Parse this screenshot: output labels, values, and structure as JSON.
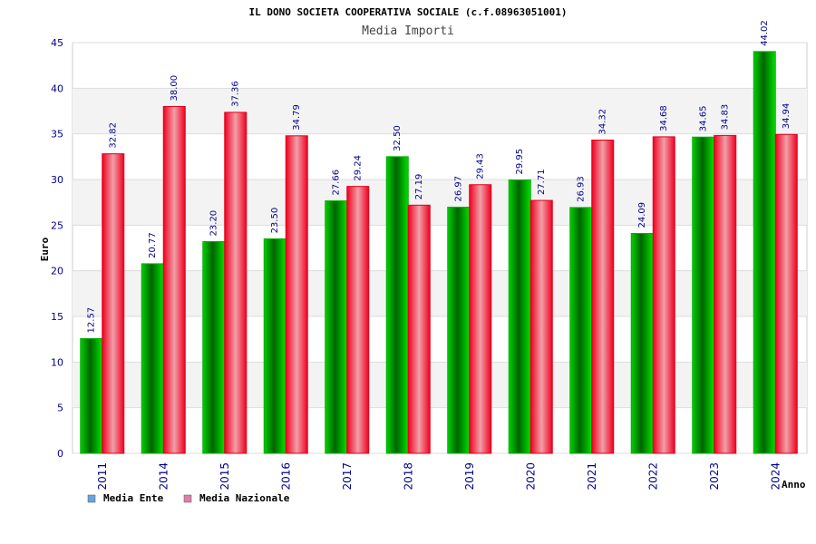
{
  "chart_data": {
    "type": "bar",
    "title": "IL DONO SOCIETA COOPERATIVA SOCIALE (c.f.08963051001)",
    "subtitle": "Media Importi",
    "xlabel": "Anno",
    "ylabel": "Euro",
    "ylim": [
      0,
      45
    ],
    "yticks": [
      0,
      5,
      10,
      15,
      20,
      25,
      30,
      35,
      40,
      45
    ],
    "grid": true,
    "legend_position": "bottom-left",
    "categories": [
      "2011",
      "2014",
      "2015",
      "2016",
      "2017",
      "2018",
      "2019",
      "2020",
      "2021",
      "2022",
      "2023",
      "2024"
    ],
    "series": [
      {
        "name": "Media Ente",
        "color": "#00a000",
        "legend_color": "#66a3e0",
        "values": [
          12.57,
          20.77,
          23.2,
          23.5,
          27.66,
          32.5,
          26.97,
          29.95,
          26.93,
          24.09,
          34.65,
          44.02
        ],
        "labels": [
          "12.57",
          "20.77",
          "23.20",
          "23.50",
          "27.66",
          "32.50",
          "26.97",
          "29.95",
          "26.93",
          "24.09",
          "34.65",
          "44.02"
        ]
      },
      {
        "name": "Media Nazionale",
        "color": "#e8001c",
        "legend_color": "#e07fa6",
        "values": [
          32.82,
          38.0,
          37.36,
          34.79,
          29.24,
          27.19,
          29.43,
          27.71,
          34.32,
          34.68,
          34.83,
          34.94
        ],
        "labels": [
          "32.82",
          "38.00",
          "37.36",
          "34.79",
          "29.24",
          "27.19",
          "29.43",
          "27.71",
          "34.32",
          "34.68",
          "34.83",
          "34.94"
        ]
      }
    ]
  }
}
